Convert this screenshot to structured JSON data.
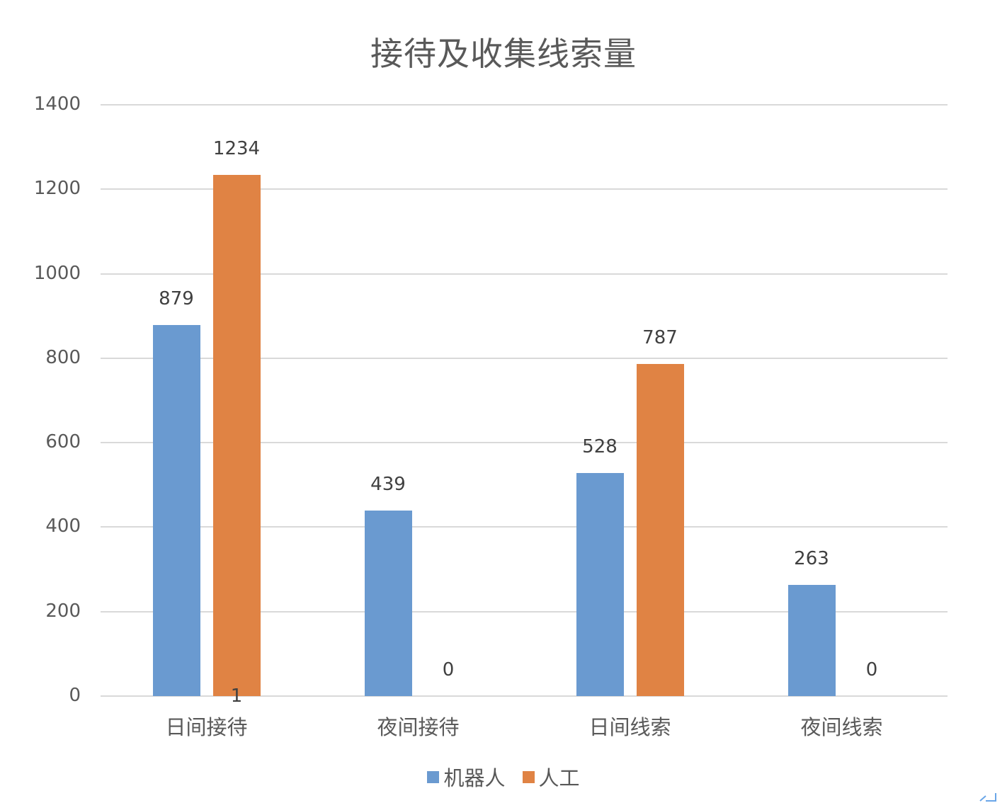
{
  "chart_data": {
    "type": "bar",
    "title": "接待及收集线索量",
    "categories": [
      "日间接待",
      "夜间接待",
      "日间线索",
      "夜间线索"
    ],
    "series": [
      {
        "name": "机器人",
        "color": "#6a9ad0",
        "values": [
          879,
          439,
          528,
          263
        ]
      },
      {
        "name": "人工",
        "color": "#e08344",
        "values": [
          1234,
          0,
          787,
          0
        ]
      }
    ],
    "data_labels": {
      "机器人": [
        "879",
        "439",
        "528",
        "263"
      ],
      "人工": [
        "1234",
        "0",
        "787",
        "0"
      ]
    },
    "stray_label": "1",
    "xlabel": "",
    "ylabel": "",
    "ylim": [
      0,
      1400
    ],
    "yticks": [
      "1400",
      "1200",
      "1000",
      "800",
      "600",
      "400",
      "200",
      "0"
    ],
    "grid": true,
    "legend_position": "bottom"
  },
  "legend": {
    "items": [
      {
        "label": "机器人",
        "color": "#6a9ad0"
      },
      {
        "label": "人工",
        "color": "#e08344"
      }
    ]
  }
}
